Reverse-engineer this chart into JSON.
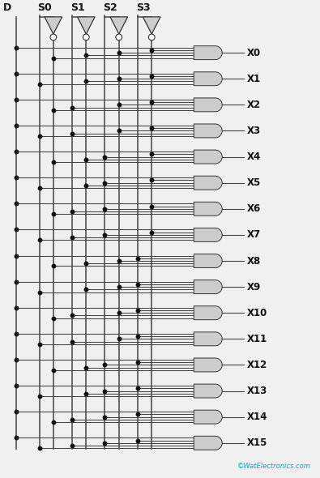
{
  "watermark": "©WatElectronics.com",
  "bg_color": "#f0f0f0",
  "outputs": [
    "X0",
    "X1",
    "X2",
    "X3",
    "X4",
    "X5",
    "X6",
    "X7",
    "X8",
    "X9",
    "X10",
    "X11",
    "X12",
    "X13",
    "X14",
    "X15"
  ],
  "select_labels": [
    "S0",
    "S1",
    "S2",
    "S3"
  ],
  "data_label": "D",
  "gate_fill": "#cccccc",
  "gate_edge": "#333333",
  "wire_color": "#444444",
  "dot_color": "#111111",
  "text_color": "#111111",
  "label_fontsize": 9,
  "select_fontsize": 9,
  "watermark_color": "#00aacc"
}
